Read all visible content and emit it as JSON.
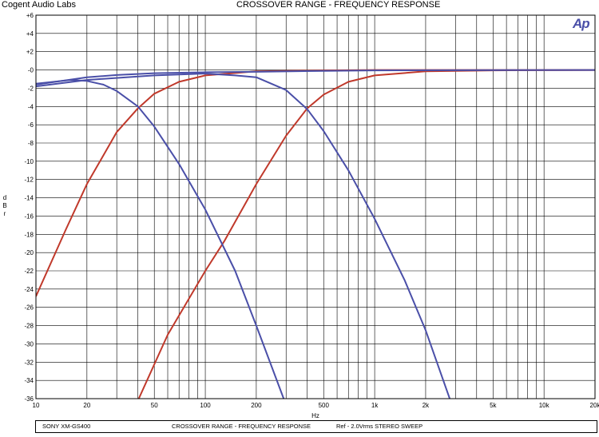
{
  "header": {
    "lab_name": "Cogent Audio Labs",
    "title": "CROSSOVER RANGE -  FREQUENCY RESPONSE",
    "logo_text": "Ap"
  },
  "footer": {
    "device": "SONY XM-GS400",
    "title": "CROSSOVER RANGE  -  FREQUENCY RESPONSE",
    "info": "Ref - 2.0Vrms   STEREO SWEEP"
  },
  "chart_data": {
    "type": "line",
    "title": "CROSSOVER RANGE -  FREQUENCY RESPONSE",
    "xlabel": "Hz",
    "ylabel": "dBr",
    "ylabel_chars": [
      "d",
      "B",
      "r"
    ],
    "x_scale": "log",
    "xlim": [
      10,
      20000
    ],
    "ylim": [
      -36,
      6
    ],
    "grid": true,
    "x_major_ticks": [
      10,
      20,
      50,
      100,
      200,
      500,
      1000,
      2000,
      5000,
      10000,
      20000
    ],
    "x_tick_labels": [
      "10",
      "20",
      "50",
      "100",
      "200",
      "500",
      "1k",
      "2k",
      "5k",
      "10k",
      "20k"
    ],
    "y_ticks": [
      6,
      4,
      2,
      0,
      -2,
      -4,
      -6,
      -8,
      -10,
      -12,
      -14,
      -16,
      -18,
      -20,
      -22,
      -24,
      -26,
      -28,
      -30,
      -32,
      -34,
      -36
    ],
    "y_tick_labels": [
      "+6",
      "+4",
      "+2",
      "-0",
      "-2",
      "-4",
      "-6",
      "-8",
      "-10",
      "-12",
      "-14",
      "-16",
      "-18",
      "-20",
      "-22",
      "-24",
      "-26",
      "-28",
      "-30",
      "-32",
      "-34",
      "-36"
    ],
    "series": [
      {
        "color": "#c0392b",
        "points": [
          [
            10,
            -24.8
          ],
          [
            15,
            -17.5
          ],
          [
            20,
            -12.5
          ],
          [
            30,
            -6.8
          ],
          [
            40,
            -4.2
          ],
          [
            50,
            -2.6
          ],
          [
            70,
            -1.3
          ],
          [
            100,
            -0.6
          ],
          [
            200,
            -0.15
          ],
          [
            500,
            -0.05
          ],
          [
            1000,
            0
          ],
          [
            20000,
            0
          ]
        ]
      },
      {
        "color": "#c0392b",
        "points": [
          [
            40,
            -36.2
          ],
          [
            60,
            -29.0
          ],
          [
            100,
            -22.0
          ],
          [
            130,
            -18.7
          ],
          [
            200,
            -12.5
          ],
          [
            300,
            -7.2
          ],
          [
            400,
            -4.2
          ],
          [
            500,
            -2.7
          ],
          [
            700,
            -1.3
          ],
          [
            1000,
            -0.6
          ],
          [
            2000,
            -0.15
          ],
          [
            5000,
            -0.05
          ],
          [
            20000,
            0
          ]
        ]
      },
      {
        "color": "#4a4fa8",
        "points": [
          [
            10,
            -1.6
          ],
          [
            20,
            -0.8
          ],
          [
            30,
            -0.55
          ],
          [
            50,
            -0.35
          ],
          [
            100,
            -0.25
          ],
          [
            200,
            -0.2
          ],
          [
            500,
            -0.1
          ],
          [
            1000,
            -0.05
          ],
          [
            20000,
            0
          ]
        ]
      },
      {
        "color": "#4a4fa8",
        "points": [
          [
            10,
            -1.5
          ],
          [
            16,
            -1.1
          ],
          [
            20,
            -1.2
          ],
          [
            25,
            -1.6
          ],
          [
            30,
            -2.3
          ],
          [
            40,
            -4.0
          ],
          [
            50,
            -6.2
          ],
          [
            70,
            -10.3
          ],
          [
            100,
            -15.3
          ],
          [
            150,
            -22.0
          ],
          [
            200,
            -28.0
          ],
          [
            300,
            -36.7
          ]
        ]
      },
      {
        "color": "#4a4fa8",
        "points": [
          [
            10,
            -1.8
          ],
          [
            20,
            -1.1
          ],
          [
            50,
            -0.6
          ],
          [
            100,
            -0.4
          ],
          [
            150,
            -0.6
          ],
          [
            200,
            -0.8
          ],
          [
            300,
            -2.2
          ],
          [
            400,
            -4.3
          ],
          [
            500,
            -6.7
          ],
          [
            700,
            -11.0
          ],
          [
            1000,
            -16.3
          ],
          [
            1500,
            -23.0
          ],
          [
            2000,
            -28.5
          ],
          [
            2800,
            -36.2
          ]
        ]
      }
    ]
  }
}
